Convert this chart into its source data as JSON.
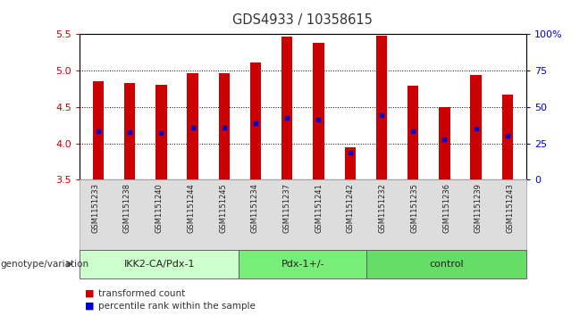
{
  "title": "GDS4933 / 10358615",
  "samples": [
    "GSM1151233",
    "GSM1151238",
    "GSM1151240",
    "GSM1151244",
    "GSM1151245",
    "GSM1151234",
    "GSM1151237",
    "GSM1151241",
    "GSM1151242",
    "GSM1151232",
    "GSM1151235",
    "GSM1151236",
    "GSM1151239",
    "GSM1151243"
  ],
  "bar_tops": [
    4.85,
    4.83,
    4.8,
    4.96,
    4.96,
    5.11,
    5.47,
    5.38,
    3.95,
    5.48,
    4.79,
    4.5,
    4.94,
    4.67
  ],
  "blue_dots": [
    4.17,
    4.15,
    4.14,
    4.22,
    4.22,
    4.28,
    4.35,
    4.33,
    3.87,
    4.39,
    4.17,
    4.06,
    4.2,
    4.1
  ],
  "bar_bottom": 3.5,
  "ylim": [
    3.5,
    5.5
  ],
  "y2lim": [
    0,
    100
  ],
  "yticks": [
    3.5,
    4.0,
    4.5,
    5.0,
    5.5
  ],
  "y2ticks": [
    0,
    25,
    50,
    75,
    100
  ],
  "groups": [
    {
      "label": "IKK2-CA/Pdx-1",
      "start": 0,
      "end": 5
    },
    {
      "label": "Pdx-1+/-",
      "start": 5,
      "end": 9
    },
    {
      "label": "control",
      "start": 9,
      "end": 14
    }
  ],
  "group_colors": [
    "#ccffcc",
    "#77ee77",
    "#66dd66"
  ],
  "bar_color": "#cc0000",
  "dot_color": "#0000cc",
  "bar_width": 0.35,
  "legend_items": [
    {
      "color": "#cc0000",
      "label": "transformed count"
    },
    {
      "color": "#0000cc",
      "label": "percentile rank within the sample"
    }
  ],
  "bg_color": "#ffffff",
  "plot_bg": "#ffffff",
  "tick_color_left": "#cc0000",
  "tick_color_right": "#0000cc",
  "grid_color": "#000000",
  "ticklabel_bg": "#dddddd"
}
